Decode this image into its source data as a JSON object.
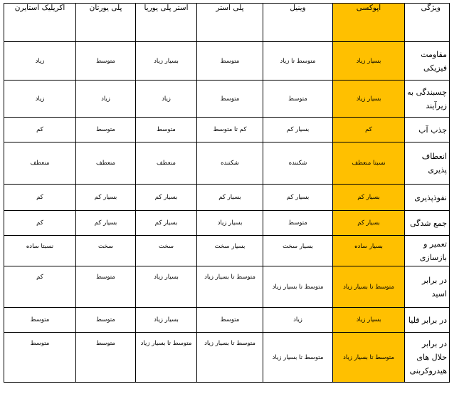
{
  "table": {
    "headers": [
      "ویژگی",
      "اپوکسی",
      "وینیل",
      "پلی استر",
      "استر پلی یوریا",
      "پلی یورتان",
      "اکریلیک استایرن"
    ],
    "rows": [
      {
        "feature": "مقاومت فیزیکی",
        "values": [
          "بسیار زیاد",
          "متوسط تا زیاد",
          "متوسط",
          "بسیار زیاد",
          "متوسط",
          "زیاد"
        ]
      },
      {
        "feature": "چسبندگی به زیرآیند",
        "values": [
          "بسیار زیاد",
          "متوسط",
          "متوسط",
          "زیاد",
          "زیاد",
          "زیاد"
        ]
      },
      {
        "feature": "جذب آب",
        "values": [
          "کم",
          "بسیار کم",
          "کم تا متوسط",
          "متوسط",
          "متوسط",
          "کم"
        ]
      },
      {
        "feature": "انعطاف پذیری",
        "values": [
          "نسبتا منعطف",
          "شکننده",
          "شکننده",
          "منعطف",
          "منعطف",
          "منعطف"
        ]
      },
      {
        "feature": "نفوذپذیری",
        "values": [
          "بسیار کم",
          "بسیار کم",
          "بسیار کم",
          "بسیار کم",
          "بسیار کم",
          "کم"
        ]
      },
      {
        "feature": "جمع شدگی",
        "values": [
          "بسیار کم",
          "متوسط",
          "بسیار زیاد",
          "بسیار کم",
          "بسیار کم",
          "کم"
        ]
      },
      {
        "feature": "تعمیر و بازسازی",
        "values": [
          "بسیار ساده",
          "بسیار سخت",
          "بسیار سخت",
          "سخت",
          "سخت",
          "نسبتا ساده"
        ]
      },
      {
        "feature": "در برابر اسید",
        "values": [
          "متوسط تا بسیار زیاد",
          "متوسط تا بسیار زیاد",
          "متوسط تا بسیار زیاد",
          "بسیار زیاد",
          "متوسط",
          "کم"
        ]
      },
      {
        "feature": "در برابر قلیا",
        "values": [
          "بسیار زیاد",
          "زیاد",
          "متوسط",
          "بسیار زیاد",
          "متوسط",
          "متوسط"
        ]
      },
      {
        "feature": "در برابر حلال های هیدروکربنی",
        "values": [
          "متوسط تا بسیار زیاد",
          "متوسط تا بسیار زیاد",
          "متوسط تا بسیار زیاد",
          "متوسط تا بسیار زیاد",
          "متوسط",
          "متوسط"
        ]
      }
    ]
  },
  "colors": {
    "highlight": "#ffc000",
    "border": "#000000"
  }
}
